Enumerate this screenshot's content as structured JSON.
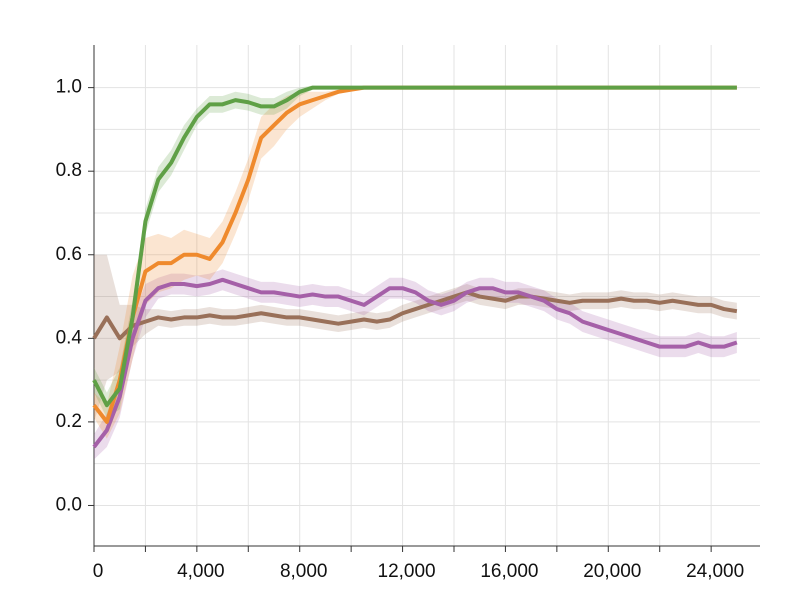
{
  "chart_data": {
    "type": "line",
    "x": [
      0,
      500,
      1000,
      1500,
      2000,
      2500,
      3000,
      3500,
      4000,
      4500,
      5000,
      5500,
      6000,
      6500,
      7000,
      7500,
      8000,
      8500,
      9000,
      9500,
      10000,
      10500,
      11000,
      11500,
      12000,
      12500,
      13000,
      13500,
      14000,
      14500,
      15000,
      15500,
      16000,
      16500,
      17000,
      17500,
      18000,
      18500,
      19000,
      19500,
      20000,
      20500,
      21000,
      21500,
      22000,
      22500,
      23000,
      23500,
      24000,
      24500,
      25000
    ],
    "series": [
      {
        "color": "#997059",
        "values": [
          0.4,
          0.45,
          0.4,
          0.43,
          0.44,
          0.45,
          0.445,
          0.45,
          0.45,
          0.455,
          0.45,
          0.45,
          0.455,
          0.46,
          0.455,
          0.45,
          0.45,
          0.445,
          0.44,
          0.435,
          0.44,
          0.445,
          0.44,
          0.445,
          0.46,
          0.47,
          0.48,
          0.49,
          0.5,
          0.51,
          0.5,
          0.495,
          0.49,
          0.5,
          0.5,
          0.495,
          0.49,
          0.485,
          0.49,
          0.49,
          0.49,
          0.495,
          0.49,
          0.49,
          0.485,
          0.49,
          0.485,
          0.48,
          0.48,
          0.47,
          0.465
        ],
        "errors": [
          0.2,
          0.15,
          0.08,
          0.05,
          0.03,
          0.02,
          0.02,
          0.02,
          0.02,
          0.02,
          0.02,
          0.02,
          0.02,
          0.02,
          0.02,
          0.02,
          0.02,
          0.02,
          0.02,
          0.02,
          0.02,
          0.02,
          0.02,
          0.02,
          0.02,
          0.02,
          0.02,
          0.02,
          0.02,
          0.02,
          0.02,
          0.02,
          0.02,
          0.02,
          0.02,
          0.02,
          0.02,
          0.02,
          0.02,
          0.02,
          0.02,
          0.02,
          0.02,
          0.02,
          0.02,
          0.02,
          0.02,
          0.02,
          0.02,
          0.02,
          0.02
        ]
      },
      {
        "color": "#a560a8",
        "values": [
          0.14,
          0.18,
          0.26,
          0.4,
          0.49,
          0.52,
          0.53,
          0.53,
          0.525,
          0.53,
          0.54,
          0.53,
          0.52,
          0.51,
          0.51,
          0.505,
          0.5,
          0.505,
          0.5,
          0.5,
          0.49,
          0.48,
          0.5,
          0.52,
          0.52,
          0.51,
          0.49,
          0.48,
          0.49,
          0.51,
          0.52,
          0.52,
          0.51,
          0.51,
          0.5,
          0.49,
          0.47,
          0.46,
          0.44,
          0.43,
          0.42,
          0.41,
          0.4,
          0.39,
          0.38,
          0.38,
          0.38,
          0.39,
          0.38,
          0.38,
          0.39
        ],
        "errors": [
          0.03,
          0.04,
          0.05,
          0.05,
          0.04,
          0.025,
          0.025,
          0.025,
          0.025,
          0.025,
          0.025,
          0.025,
          0.025,
          0.025,
          0.025,
          0.025,
          0.025,
          0.025,
          0.025,
          0.025,
          0.025,
          0.025,
          0.025,
          0.025,
          0.025,
          0.025,
          0.025,
          0.025,
          0.025,
          0.025,
          0.025,
          0.025,
          0.025,
          0.025,
          0.025,
          0.025,
          0.025,
          0.025,
          0.025,
          0.025,
          0.025,
          0.025,
          0.025,
          0.025,
          0.025,
          0.025,
          0.025,
          0.025,
          0.025,
          0.025,
          0.025
        ]
      },
      {
        "color": "#ef8a2d",
        "values": [
          0.24,
          0.2,
          0.3,
          0.45,
          0.56,
          0.58,
          0.58,
          0.6,
          0.6,
          0.59,
          0.63,
          0.7,
          0.78,
          0.88,
          0.91,
          0.94,
          0.96,
          0.97,
          0.98,
          0.99,
          0.995,
          1,
          1,
          1,
          1,
          1,
          1,
          1,
          1,
          1,
          1,
          1,
          1,
          1,
          1,
          1,
          1,
          1,
          1,
          1,
          1,
          1,
          1,
          1,
          1,
          1,
          1,
          1,
          1,
          1,
          1
        ],
        "errors": [
          0.03,
          0.04,
          0.08,
          0.1,
          0.08,
          0.07,
          0.06,
          0.06,
          0.05,
          0.05,
          0.05,
          0.05,
          0.05,
          0.05,
          0.05,
          0.04,
          0.03,
          0.02,
          0.01,
          0.005,
          0.003,
          0,
          0,
          0,
          0,
          0,
          0,
          0,
          0,
          0,
          0,
          0,
          0,
          0,
          0,
          0,
          0,
          0,
          0,
          0,
          0,
          0,
          0,
          0,
          0,
          0,
          0,
          0,
          0,
          0,
          0
        ]
      },
      {
        "color": "#5fa046",
        "values": [
          0.3,
          0.24,
          0.28,
          0.45,
          0.68,
          0.78,
          0.82,
          0.88,
          0.93,
          0.96,
          0.96,
          0.97,
          0.965,
          0.955,
          0.955,
          0.97,
          0.99,
          1,
          1,
          1,
          1,
          1,
          1,
          1,
          1,
          1,
          1,
          1,
          1,
          1,
          1,
          1,
          1,
          1,
          1,
          1,
          1,
          1,
          1,
          1,
          1,
          1,
          1,
          1,
          1,
          1,
          1,
          1,
          1,
          1,
          1
        ],
        "errors": [
          0.03,
          0.03,
          0.05,
          0.04,
          0.03,
          0.03,
          0.03,
          0.03,
          0.02,
          0.02,
          0.02,
          0.02,
          0.02,
          0.02,
          0.02,
          0.02,
          0.01,
          0.005,
          0,
          0,
          0,
          0,
          0,
          0,
          0,
          0,
          0,
          0,
          0,
          0,
          0,
          0,
          0,
          0,
          0,
          0,
          0,
          0,
          0,
          0,
          0,
          0,
          0,
          0,
          0,
          0,
          0,
          0,
          0,
          0,
          0
        ]
      }
    ],
    "xlim": [
      0,
      25900
    ],
    "ylim": [
      -0.097,
      1.102
    ],
    "xticks": [
      0,
      {
        "value": 4000,
        "label": "4,000"
      },
      {
        "value": 8000,
        "label": "8,000"
      },
      {
        "value": 12000,
        "label": "12,000"
      },
      {
        "value": 16000,
        "label": "16,000"
      },
      {
        "value": 20000,
        "label": "20,000"
      },
      {
        "value": 24000,
        "label": "24,000"
      }
    ],
    "minor_xticks": [
      2000,
      6000,
      10000,
      14000,
      18000,
      22000
    ],
    "yticks": [
      {
        "value": 0,
        "label": "0.0"
      },
      0.2,
      0.4,
      0.6,
      0.8,
      {
        "value": 1,
        "label": "1.0"
      }
    ],
    "minor_yticks": [
      0.1,
      0.3,
      0.5,
      0.7,
      0.9
    ],
    "grid": true
  }
}
